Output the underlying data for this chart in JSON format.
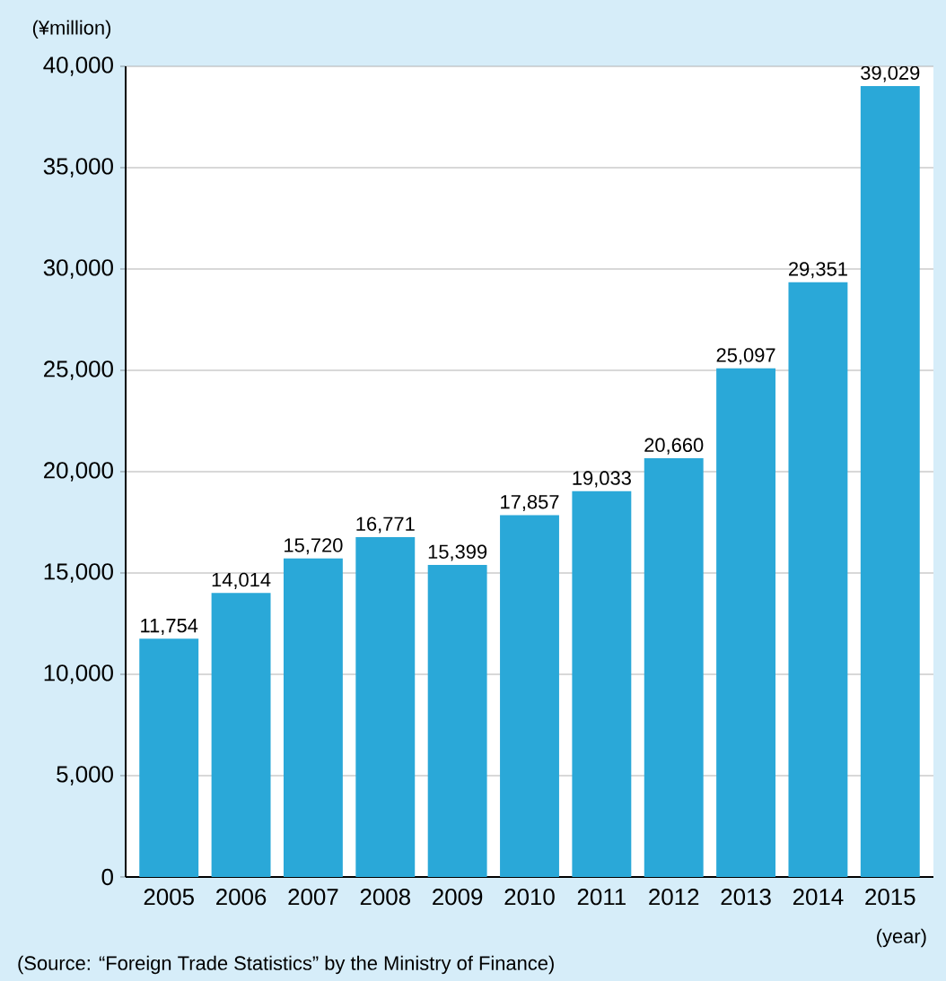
{
  "chart_data": {
    "type": "bar",
    "xlabel": "(year)",
    "ylabel": "(¥million)",
    "categories": [
      "2005",
      "2006",
      "2007",
      "2008",
      "2009",
      "2010",
      "2011",
      "2012",
      "2013",
      "2014",
      "2015"
    ],
    "values": [
      11754,
      14014,
      15720,
      16771,
      15399,
      17857,
      19033,
      20660,
      25097,
      29351,
      39029
    ],
    "value_labels": [
      "11,754",
      "14,014",
      "15,720",
      "16,771",
      "15,399",
      "17,857",
      "19,033",
      "20,660",
      "25,097",
      "29,351",
      "39,029"
    ],
    "color": "#2aa8d8",
    "ylim": [
      0,
      40000
    ],
    "yticks": [
      0,
      {
        "value": 5000,
        "label": "5,000"
      },
      {
        "value": 10000,
        "label": "10,000"
      },
      {
        "value": 15000,
        "label": "15,000"
      },
      {
        "value": 20000,
        "label": "20,000"
      },
      {
        "value": 25000,
        "label": "25,000"
      },
      {
        "value": 30000,
        "label": "30,000"
      },
      {
        "value": 35000,
        "label": "35,000"
      },
      {
        "value": 40000,
        "label": "40,000"
      }
    ],
    "grid": "y",
    "annotations": [
      "(Source: “Foreign Trade Statistics” by the Ministry of Finance)"
    ]
  }
}
